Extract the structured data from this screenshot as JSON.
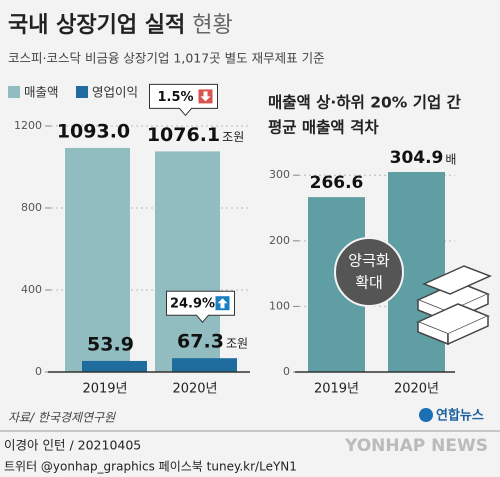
{
  "header": {
    "title": "국내 상장기업 실적",
    "title_light": "현황",
    "subtitle": "코스피·코스닥 비금융 상장기업 1,017곳 별도 재무제표 기준"
  },
  "chart_data": [
    {
      "type": "bar",
      "categories": [
        "2019년",
        "2020년"
      ],
      "series": [
        {
          "name": "매출액",
          "color": "#91bdc1",
          "values": [
            1093.0,
            1076.1
          ],
          "value_labels": [
            "1093.0",
            "1076.1"
          ]
        },
        {
          "name": "영업이익",
          "color": "#1f6c9e",
          "values": [
            53.9,
            67.3
          ]
        }
      ],
      "unit": "조원",
      "ylim": [
        0,
        1200
      ],
      "yticks": [
        0,
        400,
        800,
        1200
      ],
      "grid": true,
      "annotations": [
        {
          "text": "1.5%",
          "direction": "down"
        },
        {
          "text": "24.9%",
          "direction": "up"
        }
      ]
    },
    {
      "type": "bar",
      "title": [
        "매출액 상·하위 20% 기업 간",
        "평균 매출액 격차"
      ],
      "categories": [
        "2019년",
        "2020년"
      ],
      "values": [
        266.6,
        304.9
      ],
      "color": "#5f9ea3",
      "unit": "배",
      "ylim": [
        0,
        340
      ],
      "yticks": [
        0,
        100,
        200,
        300
      ],
      "grid": true,
      "annotation": [
        "양극화",
        "확대"
      ]
    }
  ],
  "footer": {
    "source": "자료/ 한국경제연구원",
    "logo": "연합뉴스",
    "byline": "이경아 인턴 / 20210405",
    "social": "트위터 @yonhap_graphics  페이스북 tuney.kr/LeYN1",
    "watermark": "YONHAP NEWS"
  }
}
